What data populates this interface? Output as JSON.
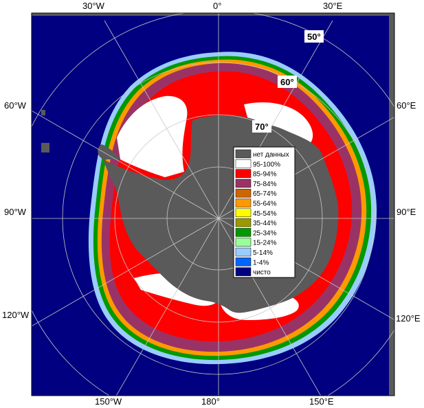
{
  "map": {
    "longitude_labels": {
      "top": [
        "30°W",
        "0°",
        "30°E"
      ],
      "left": [
        "60°W",
        "90°W",
        "120°W"
      ],
      "right": [
        "60°E",
        "90°E",
        "120°E"
      ],
      "bottom": [
        "150°W",
        "180°",
        "150°E"
      ]
    },
    "latitude_labels": [
      "50°",
      "60°",
      "70°"
    ]
  },
  "legend": {
    "items": [
      {
        "label": "нет данных",
        "color": "#5a5a5a"
      },
      {
        "label": "95-100%",
        "color": "#ffffff"
      },
      {
        "label": "85-94%",
        "color": "#ff0000"
      },
      {
        "label": "75-84%",
        "color": "#993366"
      },
      {
        "label": "65-74%",
        "color": "#cc6600"
      },
      {
        "label": "55-64%",
        "color": "#ff9900"
      },
      {
        "label": "45-54%",
        "color": "#ffff00"
      },
      {
        "label": "35-44%",
        "color": "#999900"
      },
      {
        "label": "25-34%",
        "color": "#009900"
      },
      {
        "label": "15-24%",
        "color": "#99ff99"
      },
      {
        "label": "5-14%",
        "color": "#99ccff"
      },
      {
        "label": "1-4%",
        "color": "#0066ff"
      },
      {
        "label": "чисто",
        "color": "#000080"
      }
    ]
  },
  "colors": {
    "ocean": "#000080",
    "land": "#5a5a5a",
    "ice_white": "#ffffff",
    "ice_red": "#ff0000",
    "ice_purple": "#993366",
    "grid": "#c8c8c8"
  }
}
